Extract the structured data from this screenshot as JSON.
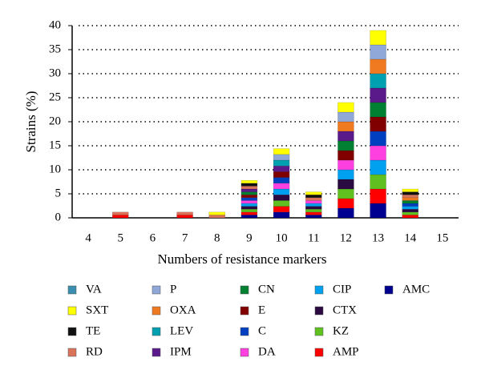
{
  "chart_data": {
    "type": "stacked-bar",
    "x_label": "Numbers of resistance markers",
    "y_label": "Strains (%)",
    "categories": [
      "4",
      "5",
      "6",
      "7",
      "8",
      "9",
      "10",
      "11",
      "12",
      "13",
      "14",
      "15"
    ],
    "ylim": [
      0,
      40
    ],
    "yticks": [
      0,
      5,
      10,
      15,
      20,
      25,
      30,
      35,
      40
    ],
    "grid": true,
    "series": [
      {
        "name": "VA",
        "color": "#3a8fb0",
        "values": [
          0,
          0,
          0,
          0,
          0,
          0,
          0,
          0,
          0,
          0,
          0,
          0
        ]
      },
      {
        "name": "SXT",
        "color": "#ffff00",
        "values": [
          0,
          0,
          0,
          0,
          0.6,
          0.6,
          1.2,
          0.6,
          2,
          3,
          0.6,
          0
        ]
      },
      {
        "name": "TE",
        "color": "#111111",
        "values": [
          0,
          0,
          0,
          0,
          0,
          0.6,
          0,
          0.6,
          0,
          0,
          0.6,
          0
        ]
      },
      {
        "name": "RD",
        "color": "#d9735a",
        "values": [
          0,
          0.6,
          0,
          0.6,
          0.6,
          0.6,
          0,
          0.6,
          0,
          0,
          0.6,
          0
        ]
      },
      {
        "name": "P",
        "color": "#8fa8d8",
        "values": [
          0,
          0,
          0,
          0,
          0,
          0,
          1.2,
          0,
          2,
          3,
          0,
          0
        ]
      },
      {
        "name": "OXA",
        "color": "#f07a20",
        "values": [
          0,
          0,
          0,
          0,
          0,
          0,
          0,
          0,
          2,
          3,
          0.6,
          0
        ]
      },
      {
        "name": "LEV",
        "color": "#00a0b0",
        "values": [
          0,
          0,
          0,
          0,
          0,
          0,
          1.2,
          0,
          0,
          3,
          0,
          0
        ]
      },
      {
        "name": "IPM",
        "color": "#5a1a8a",
        "values": [
          0,
          0,
          0,
          0,
          0,
          0.6,
          1.2,
          0,
          2,
          3,
          0,
          0
        ]
      },
      {
        "name": "CN",
        "color": "#008030",
        "values": [
          0,
          0,
          0,
          0,
          0,
          0.6,
          0,
          0,
          2,
          3,
          0.6,
          0
        ]
      },
      {
        "name": "E",
        "color": "#800000",
        "values": [
          0,
          0,
          0,
          0,
          0,
          0.6,
          1.2,
          0,
          2,
          3,
          0,
          0
        ]
      },
      {
        "name": "C",
        "color": "#0040c0",
        "values": [
          0,
          0,
          0,
          0,
          0,
          0.6,
          1.2,
          0,
          0,
          3,
          0.6,
          0
        ]
      },
      {
        "name": "DA",
        "color": "#ff40e0",
        "values": [
          0,
          0,
          0,
          0,
          0,
          0.6,
          1.2,
          0.6,
          2,
          3,
          0,
          0
        ]
      },
      {
        "name": "CIP",
        "color": "#00a0f0",
        "values": [
          0,
          0,
          0,
          0,
          0,
          0.6,
          1.2,
          0.6,
          2,
          3,
          0.6,
          0
        ]
      },
      {
        "name": "CTX",
        "color": "#2a0a40",
        "values": [
          0,
          0,
          0,
          0,
          0,
          0.6,
          1.2,
          0.6,
          2,
          0,
          0.6,
          0
        ]
      },
      {
        "name": "KZ",
        "color": "#60c020",
        "values": [
          0,
          0,
          0,
          0,
          0,
          0.6,
          1.2,
          0.6,
          2,
          3,
          0.6,
          0
        ]
      },
      {
        "name": "AMP",
        "color": "#ff0000",
        "values": [
          0,
          0.6,
          0,
          0.6,
          0,
          0.6,
          1.2,
          0.6,
          2,
          3,
          0.6,
          0
        ]
      },
      {
        "name": "AMC",
        "color": "#000090",
        "values": [
          0,
          0,
          0,
          0,
          0,
          0.6,
          1.2,
          0.6,
          2,
          3,
          0,
          0
        ]
      }
    ]
  }
}
